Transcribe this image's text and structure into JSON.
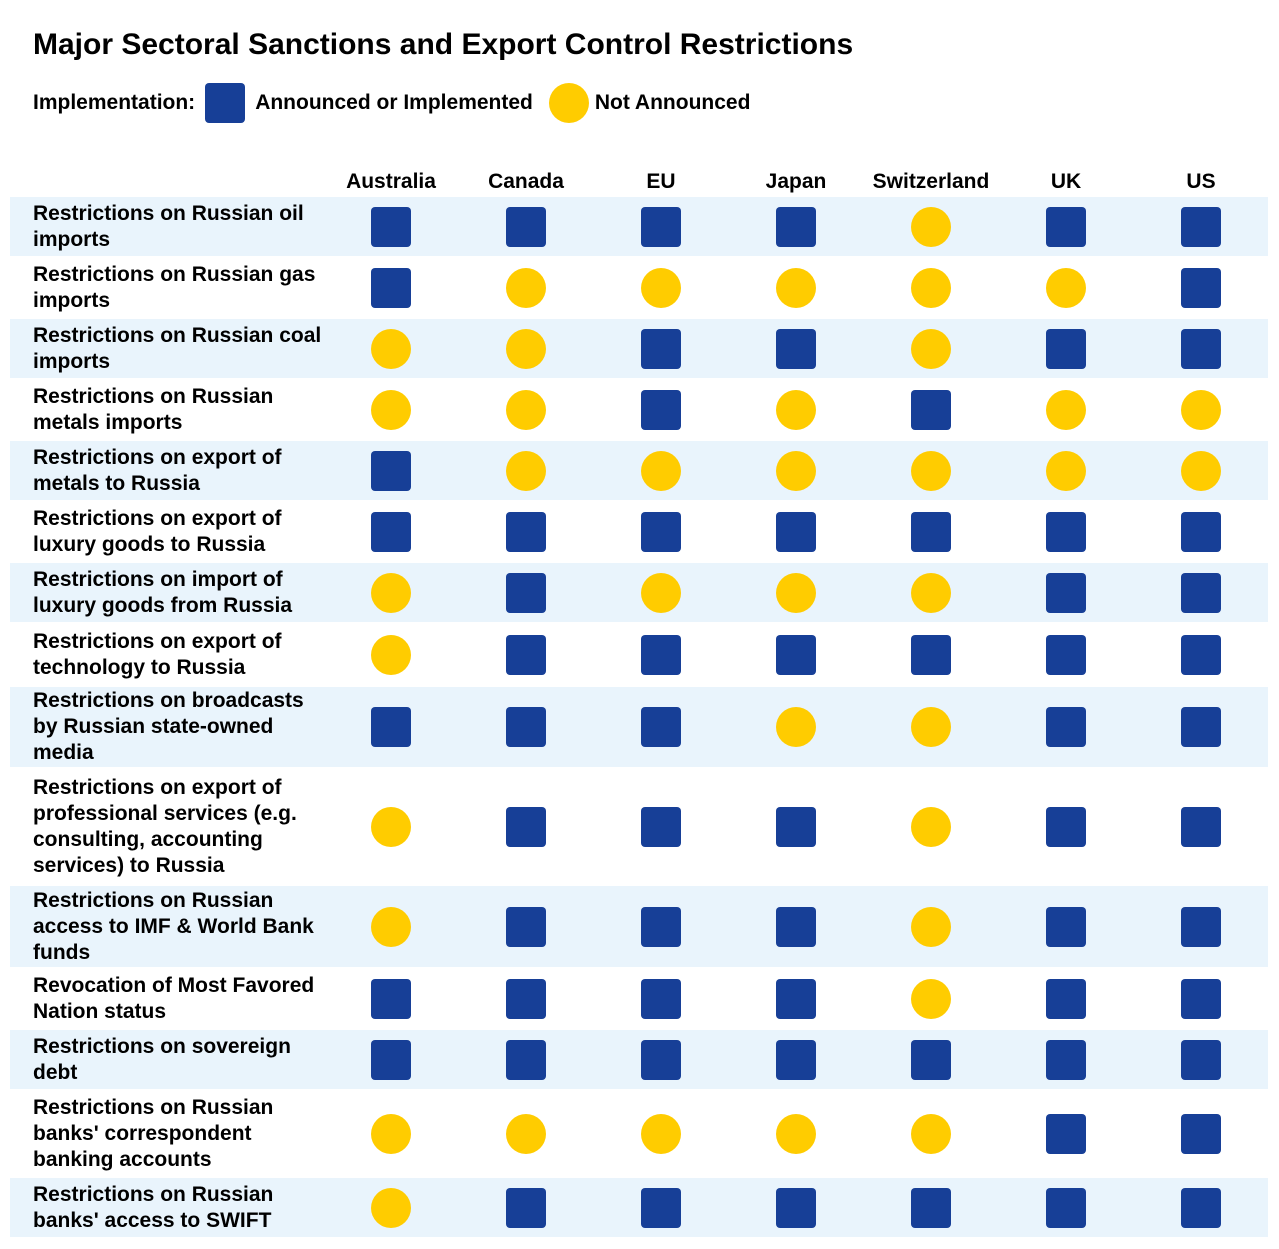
{
  "chart_data": {
    "type": "table",
    "title": "Major Sectoral Sanctions and Export Control Restrictions",
    "legend": {
      "label": "Implementation:",
      "placement": "top-left",
      "items": [
        {
          "key": "announced",
          "label": "Announced or Implemented",
          "shape": "square",
          "color": "#173F97"
        },
        {
          "key": "not_announced",
          "label": "Not Announced",
          "shape": "circle",
          "color": "#FFCC00"
        }
      ]
    },
    "colors": {
      "row_band": "#E9F4FC",
      "row_plain": "#FFFFFF"
    },
    "columns": [
      "Australia",
      "Canada",
      "EU",
      "Japan",
      "Switzerland",
      "UK",
      "US"
    ],
    "rows": [
      {
        "label": "Restrictions on Russian oil imports",
        "values": [
          "announced",
          "announced",
          "announced",
          "announced",
          "not_announced",
          "announced",
          "announced"
        ]
      },
      {
        "label": "Restrictions on Russian gas imports",
        "values": [
          "announced",
          "not_announced",
          "not_announced",
          "not_announced",
          "not_announced",
          "not_announced",
          "announced"
        ]
      },
      {
        "label": "Restrictions on Russian coal imports",
        "values": [
          "not_announced",
          "not_announced",
          "announced",
          "announced",
          "not_announced",
          "announced",
          "announced"
        ]
      },
      {
        "label": "Restrictions on Russian metals imports",
        "values": [
          "not_announced",
          "not_announced",
          "announced",
          "not_announced",
          "announced",
          "not_announced",
          "not_announced"
        ]
      },
      {
        "label": "Restrictions on export of metals to Russia",
        "values": [
          "announced",
          "not_announced",
          "not_announced",
          "not_announced",
          "not_announced",
          "not_announced",
          "not_announced"
        ]
      },
      {
        "label": "Restrictions on export of luxury goods to Russia",
        "values": [
          "announced",
          "announced",
          "announced",
          "announced",
          "announced",
          "announced",
          "announced"
        ]
      },
      {
        "label": "Restrictions on import of luxury goods from Russia",
        "values": [
          "not_announced",
          "announced",
          "not_announced",
          "not_announced",
          "not_announced",
          "announced",
          "announced"
        ]
      },
      {
        "label": "Restrictions on export of technology to Russia",
        "values": [
          "not_announced",
          "announced",
          "announced",
          "announced",
          "announced",
          "announced",
          "announced"
        ]
      },
      {
        "label": "Restrictions on broadcasts by Russian state-owned media",
        "values": [
          "announced",
          "announced",
          "announced",
          "not_announced",
          "not_announced",
          "announced",
          "announced"
        ]
      },
      {
        "label": "Restrictions on export of professional services (e.g. consulting, accounting services) to Russia",
        "values": [
          "not_announced",
          "announced",
          "announced",
          "announced",
          "not_announced",
          "announced",
          "announced"
        ]
      },
      {
        "label": "Restrictions on Russian access to IMF & World Bank funds",
        "values": [
          "not_announced",
          "announced",
          "announced",
          "announced",
          "not_announced",
          "announced",
          "announced"
        ]
      },
      {
        "label": "Revocation of Most Favored Nation status",
        "values": [
          "announced",
          "announced",
          "announced",
          "announced",
          "not_announced",
          "announced",
          "announced"
        ]
      },
      {
        "label": "Restrictions on sovereign debt",
        "values": [
          "announced",
          "announced",
          "announced",
          "announced",
          "announced",
          "announced",
          "announced"
        ]
      },
      {
        "label": "Restrictions on Russian banks' correspondent banking accounts",
        "values": [
          "not_announced",
          "not_announced",
          "not_announced",
          "not_announced",
          "not_announced",
          "announced",
          "announced"
        ]
      },
      {
        "label": "Restrictions on Russian banks' access to SWIFT",
        "values": [
          "not_announced",
          "announced",
          "announced",
          "announced",
          "announced",
          "announced",
          "announced"
        ]
      }
    ]
  }
}
